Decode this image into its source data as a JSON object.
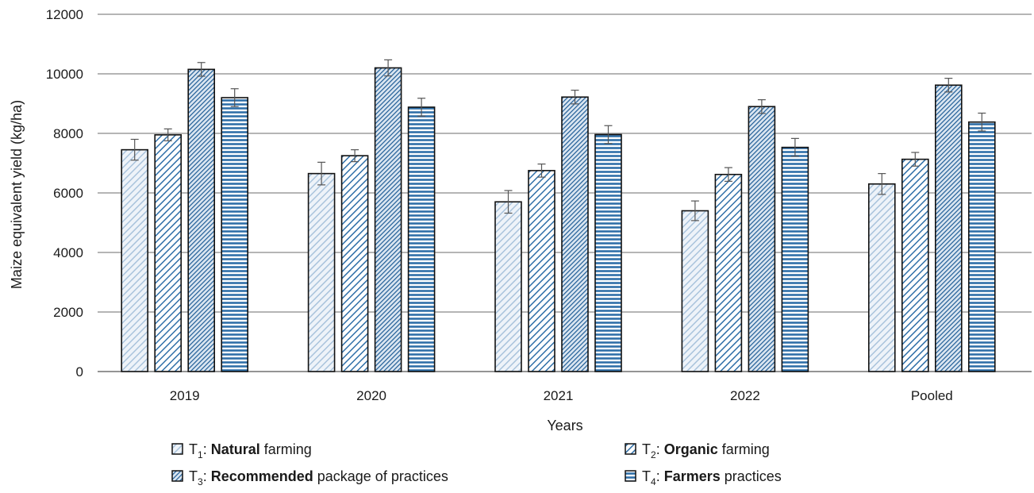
{
  "chart_data": {
    "type": "bar",
    "title": "",
    "xlabel": "Years",
    "ylabel": "Maize equivalent yield (kg/ha)",
    "ylim": [
      0,
      12000
    ],
    "yticks": [
      0,
      2000,
      4000,
      6000,
      8000,
      10000,
      12000
    ],
    "grid": true,
    "legend_position": "bottom",
    "categories": [
      "2019",
      "2020",
      "2021",
      "2022",
      "Pooled"
    ],
    "series": [
      {
        "name": "T1: Natural farming",
        "legend": {
          "symbol": "T",
          "subscript": "1",
          "sep": ": ",
          "bold": "Natural",
          "rest": " farming"
        },
        "pattern": "diag-light",
        "color": "#a9c3dc",
        "values": [
          7450,
          6650,
          5700,
          5400,
          6300
        ],
        "errors": [
          350,
          380,
          380,
          330,
          350
        ]
      },
      {
        "name": "T2: Organic farming",
        "legend": {
          "symbol": "T",
          "subscript": "2",
          "sep": ": ",
          "bold": "Organic",
          "rest": " farming"
        },
        "pattern": "diag-medium",
        "color": "#2f6fa8",
        "values": [
          7950,
          7250,
          6750,
          6620,
          7130
        ],
        "errors": [
          200,
          200,
          220,
          230,
          230
        ]
      },
      {
        "name": "T3: Recommended package of practices",
        "legend": {
          "symbol": "T",
          "subscript": "3",
          "sep": ": ",
          "bold": "Recommended",
          "rest": " package of practices"
        },
        "pattern": "diag-dense",
        "color": "#1e5c96",
        "values": [
          10150,
          10200,
          9220,
          8900,
          9620
        ],
        "errors": [
          230,
          270,
          230,
          230,
          230
        ]
      },
      {
        "name": "T4: Farmers practices",
        "legend": {
          "symbol": "T",
          "subscript": "4",
          "sep": ": ",
          "bold": "Farmers",
          "rest": " practices"
        },
        "pattern": "horizontal",
        "color": "#2f6fa8",
        "values": [
          9200,
          8880,
          7960,
          7530,
          8380
        ],
        "errors": [
          300,
          300,
          300,
          300,
          300
        ]
      }
    ]
  }
}
